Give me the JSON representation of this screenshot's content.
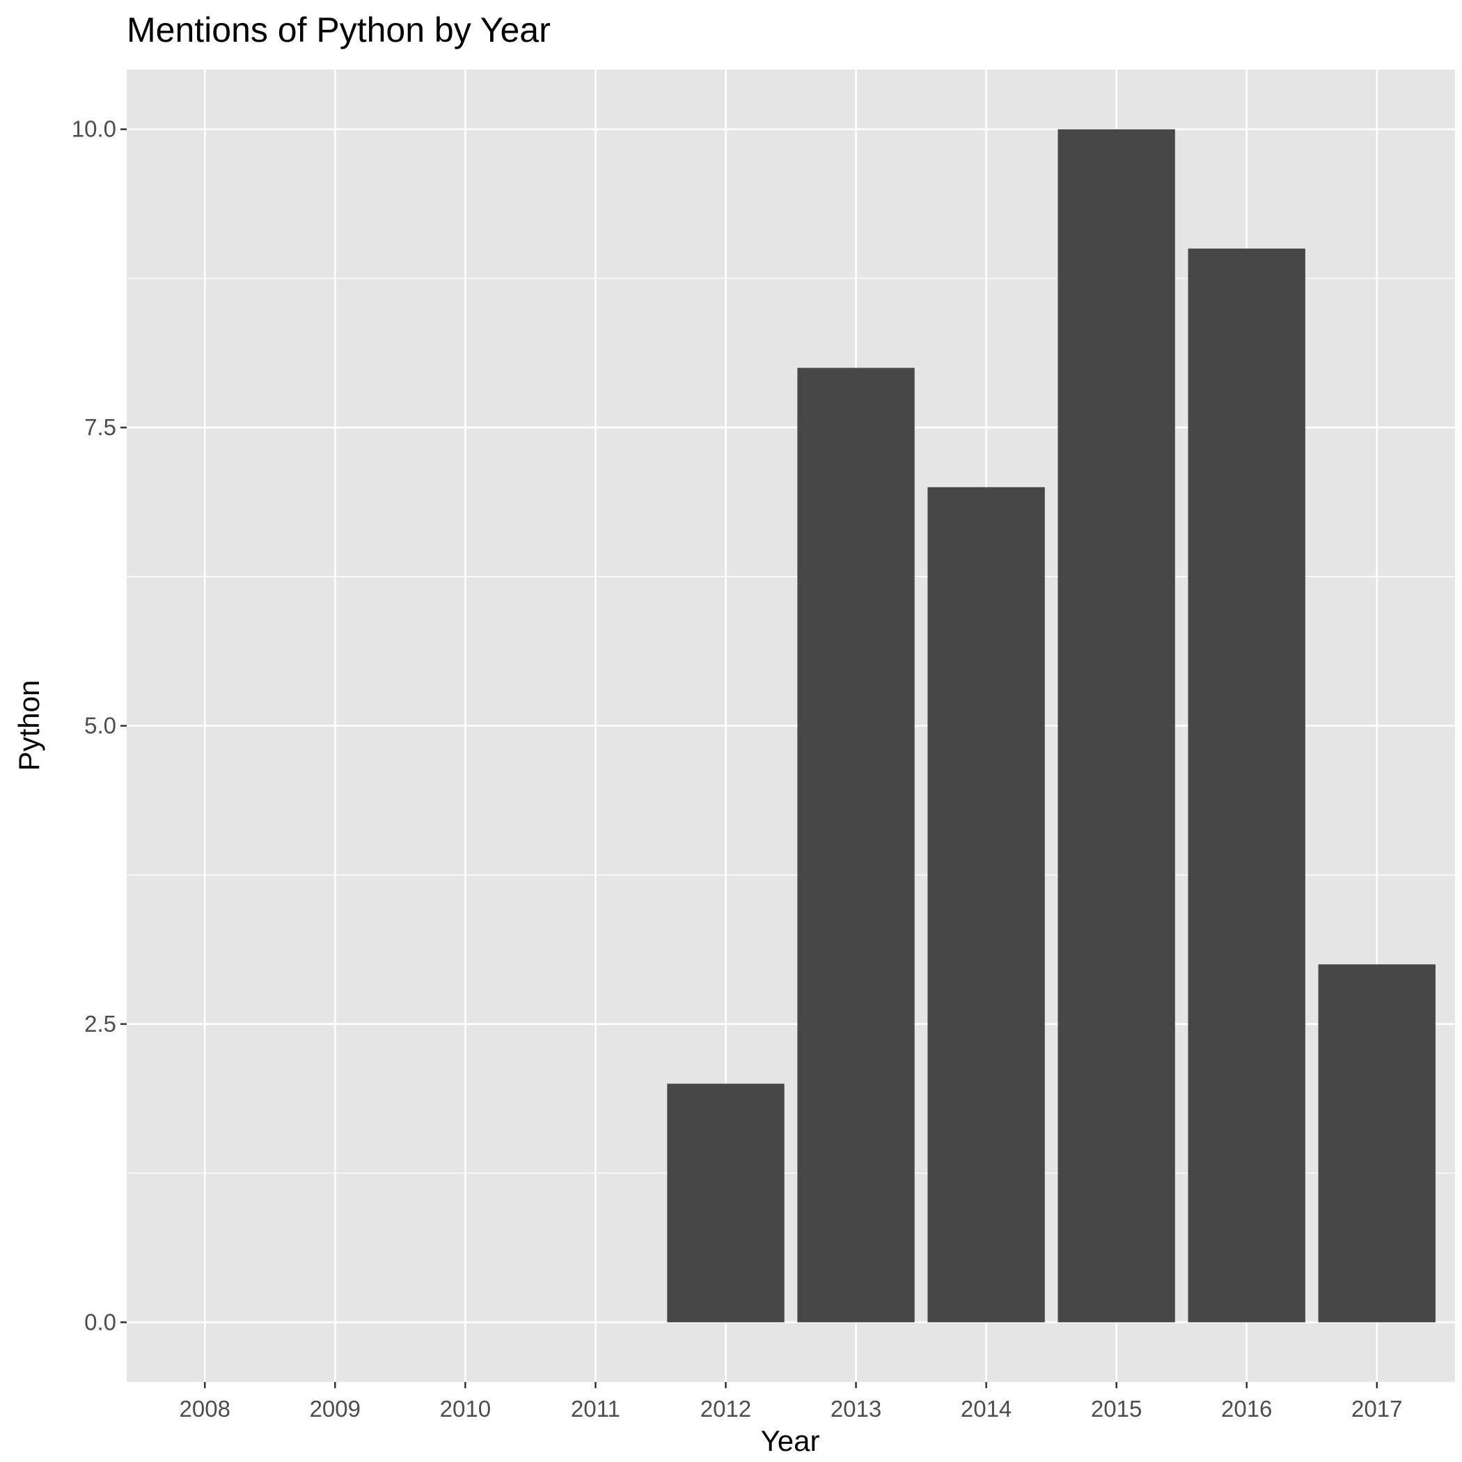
{
  "chart_data": {
    "type": "bar",
    "title": "Mentions of Python by Year",
    "xlabel": "Year",
    "ylabel": "Python",
    "categories": [
      "2008",
      "2009",
      "2010",
      "2011",
      "2012",
      "2013",
      "2014",
      "2015",
      "2016",
      "2017"
    ],
    "values": [
      0,
      0,
      0,
      0,
      2,
      8,
      7,
      10,
      9,
      3
    ],
    "yticks": [
      0,
      2.5,
      5,
      7.5,
      10
    ],
    "ytick_labels": [
      "0.0",
      "2.5",
      "5.0",
      "7.5",
      "10.0"
    ],
    "ylim": [
      -0.5,
      10.5
    ],
    "grid": true,
    "legend": "none",
    "colors": {
      "panel": "#e5e5e5",
      "grid": "#ffffff",
      "bar": "#474747",
      "tick": "#333333"
    }
  }
}
